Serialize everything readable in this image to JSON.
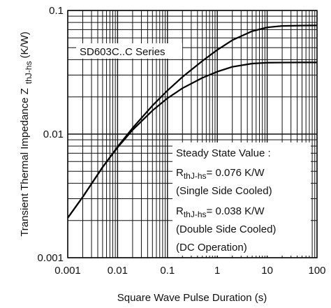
{
  "chart_data": {
    "type": "line",
    "x_scale": "log",
    "y_scale": "log",
    "xlim": [
      0.001,
      100
    ],
    "ylim": [
      0.001,
      0.1
    ],
    "grid": true,
    "xlabel": "Square Wave Pulse Duration (s)",
    "ylabel_main": "Transient Thermal Impedance Z",
    "ylabel_sub": "thJ-hs",
    "ylabel_unit": "(K/W)",
    "x_ticks": [
      {
        "value": 0.001,
        "label": "0.001"
      },
      {
        "value": 0.01,
        "label": "0.01"
      },
      {
        "value": 0.1,
        "label": "0.1"
      },
      {
        "value": 1,
        "label": "1"
      },
      {
        "value": 10,
        "label": "10"
      },
      {
        "value": 100,
        "label": "100"
      }
    ],
    "y_ticks": [
      {
        "value": 0.001,
        "label": "0.001"
      },
      {
        "value": 0.01,
        "label": "0.01"
      },
      {
        "value": 0.1,
        "label": "0.1"
      }
    ],
    "series_label": "SD603C..C Series",
    "annotation": {
      "heading": "Steady State Value :",
      "r_main_1": "R",
      "r_sub_1": "thJ-hs",
      "r_value_1": "= 0.076 K/W",
      "note_1": "(Single Side Cooled)",
      "r_main_2": "R",
      "r_sub_2": "thJ-hs",
      "r_value_2": "= 0.038 K/W",
      "note_2": "(Double Side Cooled)",
      "note_3": "(DC Operation)"
    },
    "series": [
      {
        "x": [
          0.001,
          0.002,
          0.005,
          0.01,
          0.02,
          0.05,
          0.1,
          0.2,
          0.5,
          1,
          2,
          5,
          10,
          20,
          50,
          100
        ],
        "values": [
          0.0021,
          0.0031,
          0.0054,
          0.0079,
          0.0112,
          0.017,
          0.0225,
          0.029,
          0.039,
          0.048,
          0.0575,
          0.068,
          0.073,
          0.075,
          0.0755,
          0.0757
        ]
      },
      {
        "x": [
          0.001,
          0.002,
          0.005,
          0.01,
          0.02,
          0.05,
          0.1,
          0.2,
          0.5,
          1,
          2,
          5,
          10,
          20,
          50,
          100
        ],
        "values": [
          0.0021,
          0.0031,
          0.0054,
          0.0078,
          0.0108,
          0.0155,
          0.0195,
          0.0235,
          0.0285,
          0.032,
          0.035,
          0.0372,
          0.0378,
          0.0379,
          0.038,
          0.038
        ]
      }
    ]
  }
}
